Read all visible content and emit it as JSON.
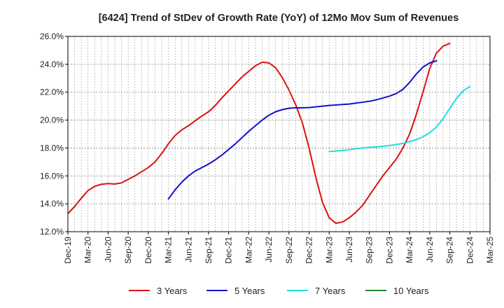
{
  "chart_data": {
    "type": "line",
    "title": "[6424]  Trend of StDev of Growth Rate (YoY) of 12Mo Mov Sum of Revenues",
    "xlabel": "",
    "ylabel": "",
    "ylim": [
      12.0,
      26.0
    ],
    "y_ticks": [
      "12.0%",
      "14.0%",
      "16.0%",
      "18.0%",
      "20.0%",
      "22.0%",
      "24.0%",
      "26.0%"
    ],
    "x_ticks": [
      "Dec-19",
      "Mar-20",
      "Jun-20",
      "Sep-20",
      "Dec-20",
      "Mar-21",
      "Jun-21",
      "Sep-21",
      "Dec-21",
      "Mar-22",
      "Jun-22",
      "Sep-22",
      "Dec-22",
      "Mar-23",
      "Jun-23",
      "Sep-23",
      "Dec-23",
      "Mar-24",
      "Jun-24",
      "Sep-24",
      "Dec-24",
      "Mar-25"
    ],
    "grid": true,
    "legend_position": "bottom",
    "series": [
      {
        "name": "3 Years",
        "color": "#dd1111",
        "start_month": 0,
        "values": [
          13.3,
          13.8,
          14.4,
          14.95,
          15.25,
          15.4,
          15.45,
          15.42,
          15.5,
          15.75,
          16.0,
          16.3,
          16.6,
          17.0,
          17.6,
          18.3,
          18.9,
          19.3,
          19.6,
          19.95,
          20.3,
          20.6,
          21.05,
          21.6,
          22.1,
          22.6,
          23.1,
          23.5,
          23.9,
          24.15,
          24.1,
          23.75,
          23.05,
          22.15,
          21.1,
          19.8,
          18.0,
          15.9,
          14.1,
          13.0,
          12.6,
          12.7,
          13.0,
          13.4,
          13.9,
          14.6,
          15.3,
          16.0,
          16.6,
          17.2,
          18.0,
          19.0,
          20.4,
          22.0,
          23.7,
          24.8,
          25.3,
          25.5
        ],
        "label": "3 Years"
      },
      {
        "name": "5 Years",
        "color": "#1111cc",
        "start_month": 15,
        "values": [
          14.35,
          15.0,
          15.55,
          16.0,
          16.35,
          16.6,
          16.85,
          17.15,
          17.5,
          17.9,
          18.3,
          18.75,
          19.2,
          19.6,
          20.0,
          20.35,
          20.6,
          20.75,
          20.85,
          20.88,
          20.88,
          20.9,
          20.95,
          21.0,
          21.05,
          21.08,
          21.12,
          21.15,
          21.22,
          21.28,
          21.35,
          21.45,
          21.58,
          21.72,
          21.9,
          22.2,
          22.7,
          23.3,
          23.8,
          24.1,
          24.25
        ],
        "label": "5 Years"
      },
      {
        "name": "7 Years",
        "color": "#22dddd",
        "start_month": 39,
        "values": [
          17.75,
          17.78,
          17.82,
          17.88,
          17.95,
          18.0,
          18.05,
          18.08,
          18.12,
          18.18,
          18.25,
          18.33,
          18.45,
          18.6,
          18.8,
          19.1,
          19.5,
          20.1,
          20.85,
          21.55,
          22.1,
          22.4
        ],
        "label": "7 Years"
      },
      {
        "name": "10 Years",
        "color": "#228822",
        "start_month": 0,
        "values": [],
        "label": "10 Years"
      }
    ]
  }
}
